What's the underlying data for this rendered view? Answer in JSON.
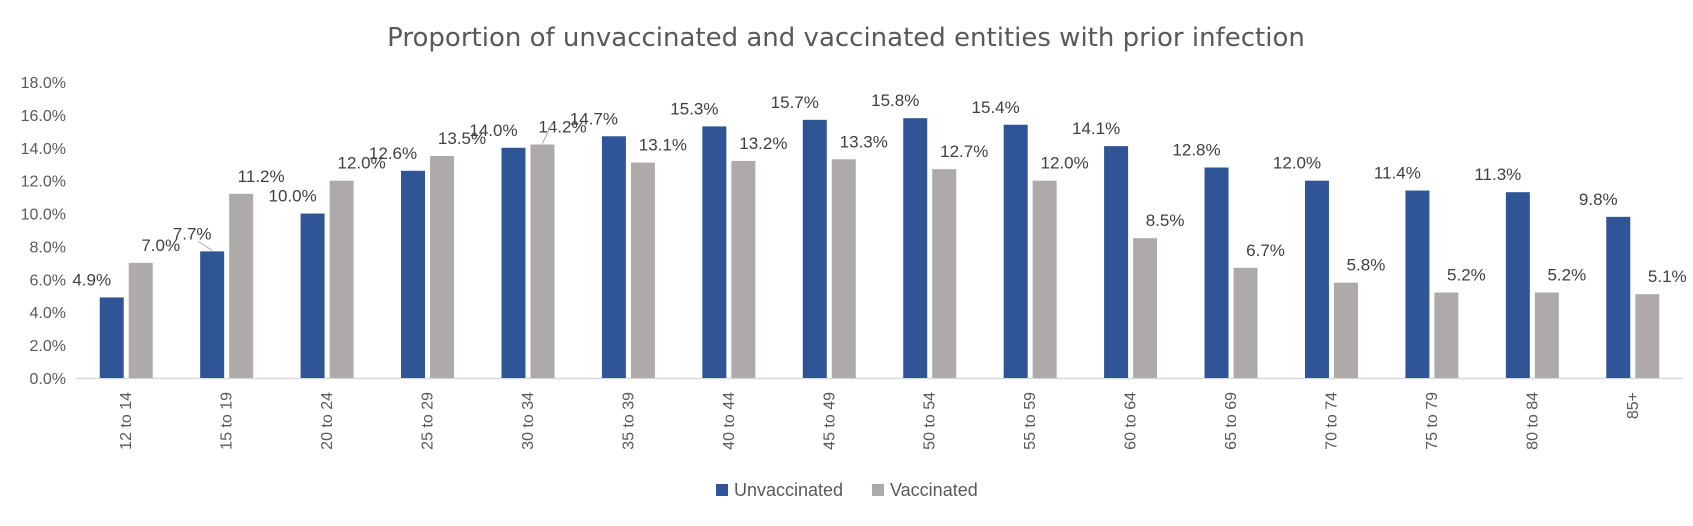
{
  "chart_data": {
    "type": "bar",
    "title": "Proportion of unvaccinated and vaccinated entities with prior infection",
    "categories": [
      "12 to 14",
      "15 to 19",
      "20 to 24",
      "25 to 29",
      "30 to 34",
      "35 to 39",
      "40 to 44",
      "45 to 49",
      "50 to 54",
      "55 to 59",
      "60 to 64",
      "65 to 69",
      "70 to 74",
      "75 to 79",
      "80 to 84",
      "85+"
    ],
    "series": [
      {
        "name": "Unvaccinated",
        "color": "#2F5597",
        "values": [
          4.9,
          7.7,
          10.0,
          12.6,
          14.0,
          14.7,
          15.3,
          15.7,
          15.8,
          15.4,
          14.1,
          12.8,
          12.0,
          11.4,
          11.3,
          9.8
        ],
        "labels": [
          "4.9%",
          "7.7%",
          "10.0%",
          "12.6%",
          "14.0%",
          "14.7%",
          "15.3%",
          "15.7%",
          "15.8%",
          "15.4%",
          "14.1%",
          "12.8%",
          "12.0%",
          "11.4%",
          "11.3%",
          "9.8%"
        ]
      },
      {
        "name": "Vaccinated",
        "color": "#AEAAAA",
        "values": [
          7.0,
          11.2,
          12.0,
          13.5,
          14.2,
          13.1,
          13.2,
          13.3,
          12.7,
          12.0,
          8.5,
          6.7,
          5.8,
          5.2,
          5.2,
          5.1
        ],
        "labels": [
          "7.0%",
          "11.2%",
          "12.0%",
          "13.5%",
          "14.2%",
          "13.1%",
          "13.2%",
          "13.3%",
          "12.7%",
          "12.0%",
          "8.5%",
          "6.7%",
          "5.8%",
          "5.2%",
          "5.2%",
          "5.1%"
        ]
      }
    ],
    "y_ticks": [
      "0.0%",
      "2.0%",
      "4.0%",
      "6.0%",
      "8.0%",
      "10.0%",
      "12.0%",
      "14.0%",
      "16.0%",
      "18.0%"
    ],
    "ylim": [
      0,
      18
    ],
    "xlabel": "",
    "ylabel": "",
    "grid": false,
    "legend": "bottom-center"
  }
}
